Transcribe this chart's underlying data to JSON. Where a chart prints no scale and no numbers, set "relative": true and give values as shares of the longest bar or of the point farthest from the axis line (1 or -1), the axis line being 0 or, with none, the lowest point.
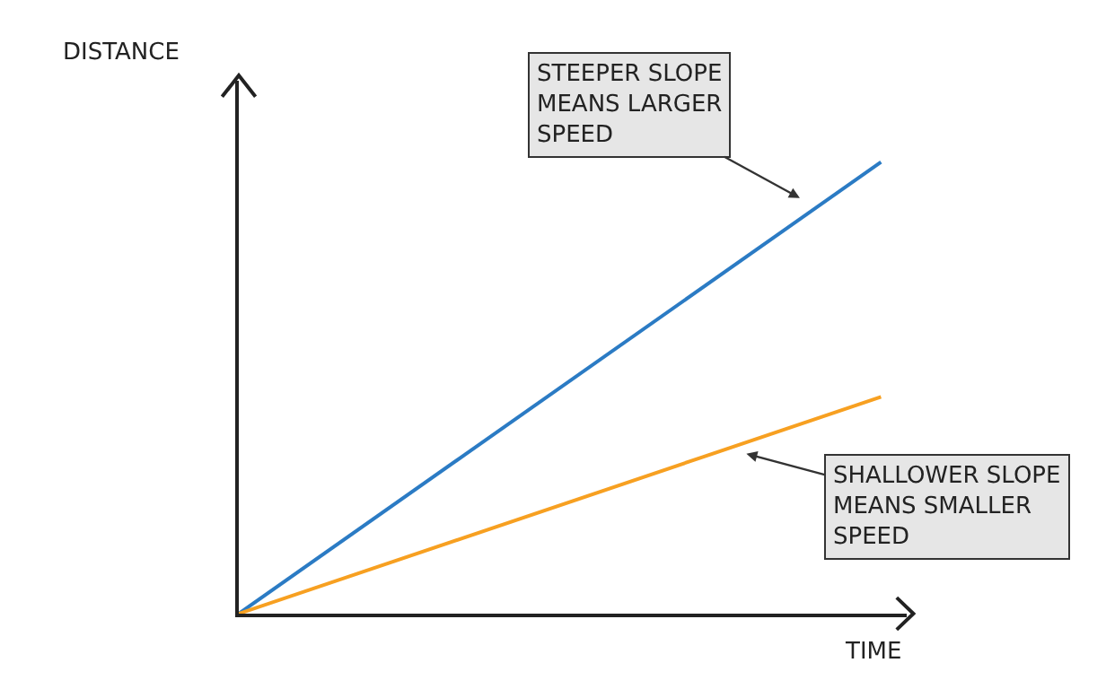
{
  "chart_data": {
    "type": "line",
    "relative": true,
    "xlabel": "TIME",
    "ylabel": "DISTANCE",
    "categories": [
      null,
      null
    ],
    "series": [
      {
        "color": "#2b7bc4",
        "values": [
          0,
          1
        ]
      },
      {
        "color": "#f7a021",
        "values": [
          0,
          0.48
        ]
      }
    ],
    "annotations": [
      "STEEPER SLOPE\nMEANS LARGER\nSPEED",
      "SHALLOWER SLOPE\nMEANS SMALLER\nSPEED"
    ],
    "marker": "none",
    "line_style": "solid"
  }
}
